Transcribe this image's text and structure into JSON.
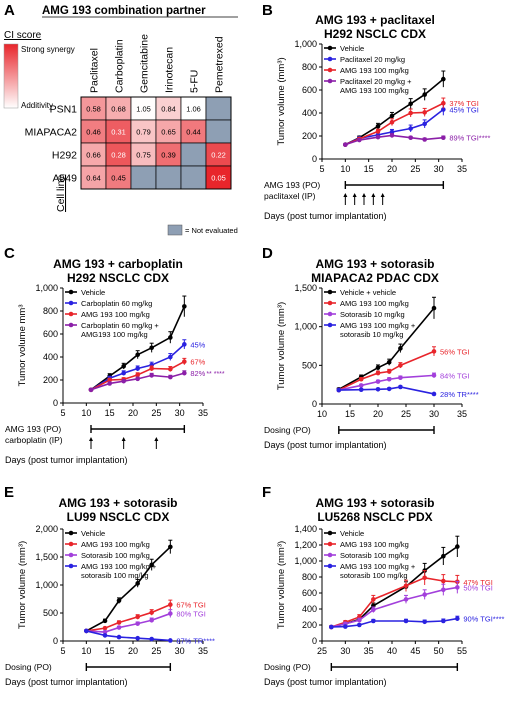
{
  "panel_letters": {
    "A": "A",
    "B": "B",
    "C": "C",
    "D": "D",
    "E": "E",
    "F": "F"
  },
  "heatmap": {
    "title": "AMG 193 combination partner",
    "ci_score_label": "CI score",
    "strong_label": "Strong synergy",
    "additivity_label": "Additivity",
    "cell_line_label": "Cell line",
    "not_evaluated_label": "= Not evaluated",
    "colors": {
      "strong": "#e8252b",
      "weak": "#ffffff",
      "not_evaluated": "#8e9fb4"
    }
  },
  "chart_data": [
    {
      "panel": "A",
      "type": "heatmap",
      "columns": [
        "Paclitaxel",
        "Carboplatin",
        "Gemcitabine",
        "Irinotecan",
        "5-FU",
        "Pemetrexed"
      ],
      "rows": [
        "PSN1",
        "MIAPACA2",
        "H292",
        "A549"
      ],
      "values": [
        [
          0.58,
          0.68,
          1.05,
          0.84,
          1.06,
          null
        ],
        [
          0.46,
          0.31,
          0.79,
          0.65,
          0.44,
          null
        ],
        [
          0.66,
          0.28,
          0.75,
          0.39,
          null,
          0.22
        ],
        [
          0.64,
          0.45,
          null,
          null,
          null,
          0.05
        ]
      ]
    },
    {
      "panel": "B",
      "type": "line",
      "title_line1": "AMG 193 + paclitaxel",
      "title_line2": "H292 NSCLC CDX",
      "xlabel": "Days (post tumor implantation)",
      "ylabel": "Tumor volume (mm³)",
      "xlim": [
        5,
        35
      ],
      "ylim": [
        0,
        1000
      ],
      "xticks": [
        5,
        10,
        15,
        20,
        25,
        30,
        35
      ],
      "yticks": [
        0,
        200,
        400,
        600,
        800,
        1000
      ],
      "yticklabels": [
        "0",
        "200",
        "400",
        "600",
        "800",
        "1,000"
      ],
      "dosing_rows": [
        "AMG 193 (PO)",
        "paclitaxel (IP)"
      ],
      "dosing_bar": [
        10,
        31
      ],
      "arrows": [
        10,
        12,
        14,
        16,
        18
      ],
      "series": [
        {
          "name": "Vehicle",
          "color": "#000000",
          "x": [
            10,
            13,
            17,
            20,
            24,
            27,
            31
          ],
          "y": [
            125,
            185,
            285,
            375,
            480,
            560,
            695
          ],
          "err": [
            6,
            15,
            25,
            30,
            45,
            50,
            70
          ],
          "end_label": ""
        },
        {
          "name": "Paclitaxel 20 mg/kg",
          "color": "#2a22e0",
          "x": [
            10,
            13,
            17,
            20,
            24,
            27,
            31
          ],
          "y": [
            125,
            180,
            210,
            235,
            265,
            305,
            430
          ],
          "err": [
            6,
            12,
            20,
            22,
            30,
            35,
            50
          ],
          "end_label": "45% TGI"
        },
        {
          "name": "AMG 193 100 mg/kg",
          "color": "#e8252b",
          "x": [
            10,
            13,
            17,
            20,
            24,
            27,
            31
          ],
          "y": [
            125,
            175,
            240,
            320,
            400,
            405,
            485
          ],
          "err": [
            6,
            12,
            20,
            30,
            35,
            35,
            45
          ],
          "end_label": "37% TGI"
        },
        {
          "name": "Paclitaxel 20 mg/kg + AMG 193 100 mg/kg",
          "color": "#8b1fa8",
          "x": [
            10,
            13,
            17,
            20,
            24,
            27,
            31
          ],
          "y": [
            125,
            165,
            190,
            205,
            185,
            170,
            185
          ],
          "err": [
            6,
            10,
            12,
            15,
            12,
            12,
            15
          ],
          "end_label": "89% TGI****"
        }
      ]
    },
    {
      "panel": "C",
      "type": "line",
      "title_line1": "AMG 193 + carboplatin",
      "title_line2": "H292 NSCLC CDX",
      "xlabel": "Days (post tumor implantation)",
      "ylabel": "Tumor volume mm³",
      "xlim": [
        5,
        35
      ],
      "ylim": [
        0,
        1000
      ],
      "xticks": [
        5,
        10,
        15,
        20,
        25,
        30,
        35
      ],
      "yticks": [
        0,
        200,
        400,
        600,
        800,
        1000
      ],
      "yticklabels": [
        "0",
        "200",
        "400",
        "600",
        "800",
        "1,000"
      ],
      "dosing_rows": [
        "AMG 193 (PO)",
        "carboplatin (IP)"
      ],
      "dosing_bar": [
        11,
        31
      ],
      "arrows": [
        11,
        18,
        25
      ],
      "series": [
        {
          "name": "Vehicle",
          "color": "#000000",
          "x": [
            11,
            15,
            18,
            21,
            24,
            28,
            31
          ],
          "y": [
            115,
            235,
            320,
            420,
            480,
            570,
            840
          ],
          "err": [
            8,
            20,
            25,
            35,
            40,
            50,
            90
          ],
          "end_label": ""
        },
        {
          "name": "Carboplatin 60 mg/kg",
          "color": "#2a22e0",
          "x": [
            11,
            15,
            18,
            21,
            24,
            28,
            31
          ],
          "y": [
            115,
            215,
            260,
            300,
            330,
            400,
            510
          ],
          "err": [
            8,
            18,
            20,
            22,
            25,
            30,
            40
          ],
          "end_label": "45%"
        },
        {
          "name": "AMG 193 100 mg/kg",
          "color": "#e8252b",
          "x": [
            11,
            15,
            18,
            21,
            24,
            28,
            31
          ],
          "y": [
            115,
            200,
            205,
            245,
            300,
            295,
            360
          ],
          "err": [
            8,
            15,
            15,
            18,
            22,
            22,
            28
          ],
          "end_label": "67%"
        },
        {
          "name": "Carboplatin 60 mg/kg + AMG193 100 mg/kg",
          "color": "#8b1fa8",
          "x": [
            11,
            15,
            18,
            21,
            24,
            28,
            31
          ],
          "y": [
            115,
            170,
            190,
            210,
            240,
            225,
            260
          ],
          "err": [
            8,
            12,
            12,
            15,
            18,
            16,
            20
          ],
          "end_label": "82%"
        }
      ],
      "annotation": "** ****"
    },
    {
      "panel": "D",
      "type": "line",
      "title_line1": "AMG 193 + sotorasib",
      "title_line2": "MIAPACA2 PDAC CDX",
      "xlabel": "Days (post tumor implantation)",
      "ylabel": "Tumor volume (mm³)",
      "xlim": [
        10,
        35
      ],
      "ylim": [
        0,
        1500
      ],
      "xticks": [
        10,
        15,
        20,
        25,
        30,
        35
      ],
      "yticks": [
        0,
        500,
        1000,
        1500
      ],
      "yticklabels": [
        "0",
        "500",
        "1,000",
        "1,500"
      ],
      "dosing_rows": [
        "Dosing (PO)"
      ],
      "dosing_bar": [
        13,
        30
      ],
      "series": [
        {
          "name": "Vehicle + vehicle",
          "color": "#000000",
          "x": [
            13,
            17,
            20,
            22,
            24,
            30
          ],
          "y": [
            190,
            350,
            470,
            540,
            720,
            1240
          ],
          "err": [
            15,
            25,
            35,
            40,
            55,
            140
          ],
          "end_label": ""
        },
        {
          "name": "AMG 193 100 mg/kg",
          "color": "#e8252b",
          "x": [
            13,
            17,
            20,
            22,
            24,
            30
          ],
          "y": [
            180,
            320,
            400,
            420,
            500,
            680
          ],
          "err": [
            15,
            22,
            25,
            28,
            35,
            60
          ],
          "end_label": "56% TGI"
        },
        {
          "name": "Sotorasib 10 mg/kg",
          "color": "#a23fdb",
          "x": [
            13,
            17,
            20,
            22,
            24,
            30
          ],
          "y": [
            180,
            240,
            290,
            320,
            340,
            370
          ],
          "err": [
            15,
            15,
            18,
            20,
            22,
            30
          ],
          "end_label": "84% TGI"
        },
        {
          "name": "AMG 193 100 mg/kg + sotorasib 10 mg/kg",
          "color": "#2a22e0",
          "x": [
            13,
            17,
            20,
            22,
            24,
            30
          ],
          "y": [
            180,
            185,
            190,
            195,
            220,
            130
          ],
          "err": [
            12,
            12,
            12,
            14,
            15,
            12
          ],
          "end_label": "28% TR****"
        }
      ]
    },
    {
      "panel": "E",
      "type": "line",
      "title_line1": "AMG 193 + sotorasib",
      "title_line2": "LU99 NSCLC CDX",
      "xlabel": "Days (post tumor implantation)",
      "ylabel": "Tumor volume (mm³)",
      "xlim": [
        5,
        35
      ],
      "ylim": [
        0,
        2000
      ],
      "xticks": [
        5,
        10,
        15,
        20,
        25,
        30,
        35
      ],
      "yticks": [
        0,
        500,
        1000,
        1500,
        2000
      ],
      "yticklabels": [
        "0",
        "500",
        "1,000",
        "1,500",
        "2,000"
      ],
      "dosing_rows": [
        "Dosing (PO)"
      ],
      "dosing_bar": [
        10,
        28
      ],
      "series": [
        {
          "name": "Vehicle",
          "color": "#000000",
          "x": [
            10,
            14,
            17,
            21,
            24,
            28
          ],
          "y": [
            180,
            360,
            720,
            1030,
            1360,
            1680
          ],
          "err": [
            15,
            30,
            50,
            70,
            100,
            120
          ],
          "end_label": ""
        },
        {
          "name": "AMG 193 100 mg/kg",
          "color": "#e8252b",
          "x": [
            10,
            14,
            17,
            21,
            24,
            28
          ],
          "y": [
            180,
            230,
            330,
            430,
            510,
            650
          ],
          "err": [
            15,
            20,
            30,
            40,
            50,
            80
          ],
          "end_label": "67% TGI"
        },
        {
          "name": "Sotorasib 100 mg/kg",
          "color": "#a23fdb",
          "x": [
            10,
            14,
            17,
            21,
            24,
            28
          ],
          "y": [
            180,
            160,
            240,
            310,
            370,
            490
          ],
          "err": [
            15,
            15,
            22,
            30,
            40,
            70
          ],
          "end_label": "80% TGI"
        },
        {
          "name": "AMG 193 100 mg/kg + sotorasib 100 mg/kg",
          "color": "#2a22e0",
          "x": [
            10,
            14,
            17,
            21,
            24,
            28
          ],
          "y": [
            180,
            100,
            70,
            50,
            35,
            10
          ],
          "err": [
            12,
            10,
            8,
            6,
            5,
            3
          ],
          "end_label": "87% TR****"
        }
      ]
    },
    {
      "panel": "F",
      "type": "line",
      "title_line1": "AMG 193 + sotorasib",
      "title_line2": "LU5268 NSCLC PDX",
      "xlabel": "Days (post tumor implantation)",
      "ylabel": "Tumor volume (mm³)",
      "xlim": [
        25,
        55
      ],
      "ylim": [
        0,
        1400
      ],
      "xticks": [
        25,
        30,
        35,
        40,
        45,
        50,
        55
      ],
      "yticks": [
        0,
        200,
        400,
        600,
        800,
        1000,
        1200,
        1400
      ],
      "yticklabels": [
        "0",
        "200",
        "400",
        "600",
        "800",
        "1,000",
        "1,200",
        "1,400"
      ],
      "dosing_rows": [
        "Dosing (PO)"
      ],
      "dosing_bar": [
        27,
        54
      ],
      "series": [
        {
          "name": "Vehicle",
          "color": "#000000",
          "x": [
            27,
            30,
            33,
            36,
            43,
            47,
            51,
            54
          ],
          "y": [
            175,
            215,
            270,
            440,
            680,
            880,
            1060,
            1180
          ],
          "err": [
            15,
            20,
            25,
            35,
            60,
            90,
            110,
            130
          ],
          "end_label": ""
        },
        {
          "name": "AMG 193 100 mg/kg",
          "color": "#e8252b",
          "x": [
            27,
            30,
            33,
            36,
            43,
            47,
            51,
            54
          ],
          "y": [
            175,
            235,
            300,
            520,
            690,
            790,
            750,
            740
          ],
          "err": [
            15,
            20,
            30,
            50,
            70,
            90,
            80,
            80
          ],
          "end_label": "47% TGI"
        },
        {
          "name": "Sotorasib 100 mg/kg",
          "color": "#a23fdb",
          "x": [
            27,
            30,
            33,
            36,
            43,
            47,
            51,
            54
          ],
          "y": [
            175,
            215,
            260,
            390,
            520,
            580,
            640,
            670
          ],
          "err": [
            15,
            18,
            25,
            35,
            50,
            60,
            70,
            75
          ],
          "end_label": "50% TGI"
        },
        {
          "name": "AMG 193 100 mg/kg + sotorasib 100 mg/kg",
          "color": "#2a22e0",
          "x": [
            27,
            30,
            33,
            36,
            43,
            47,
            51,
            54
          ],
          "y": [
            175,
            180,
            200,
            250,
            250,
            240,
            250,
            280
          ],
          "err": [
            12,
            12,
            15,
            20,
            22,
            22,
            25,
            30
          ],
          "end_label": "90% TGI****"
        }
      ]
    }
  ]
}
